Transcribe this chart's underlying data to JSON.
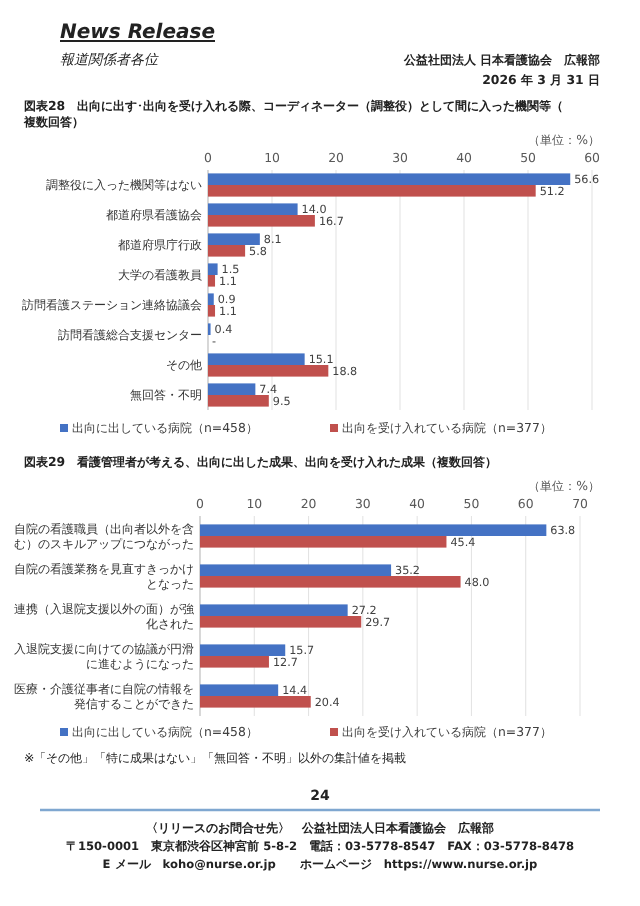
{
  "chart_data": [
    {
      "type": "bar",
      "orientation": "horizontal",
      "title": "図表28　出向に出す･出向を受け入れる際、コーディネーター（調整役）として間に入った機関等（複数回答）",
      "annotations": [
        "News Release",
        "報道関係者各位",
        "公益社団法人 日本看護協会　広報部",
        "2026 年 3 月 31 日",
        "（単位：%）"
      ],
      "categories": [
        "調整役に入った機関等はない",
        "都道府県看護協会",
        "都道府県庁行政",
        "大学の看護教員",
        "訪問看護ステーション連絡協議会",
        "訪問看護総合支援センター",
        "その他",
        "無回答・不明"
      ],
      "series": [
        {
          "name": "出向に出している病院（n=458）",
          "color": "#4472c4",
          "values": [
            56.6,
            14.0,
            8.1,
            1.5,
            0.9,
            0.4,
            15.1,
            7.4
          ],
          "value_labels": [
            "56.6",
            "14.0",
            "8.1",
            "1.5",
            "0.9",
            "0.4",
            "15.1",
            "7.4"
          ]
        },
        {
          "name": "出向を受け入れている病院（n=377）",
          "color": "#c0504d",
          "values": [
            51.2,
            16.7,
            5.8,
            1.1,
            1.1,
            0,
            18.8,
            9.5
          ],
          "value_labels": [
            "51.2",
            "16.7",
            "5.8",
            "1.1",
            "1.1",
            "-",
            "18.8",
            "9.5"
          ]
        }
      ],
      "xlim": [
        0,
        60
      ],
      "xticks": [
        0,
        10,
        20,
        30,
        40,
        50,
        60
      ],
      "grid": "x",
      "legend": "bottom"
    },
    {
      "type": "bar",
      "orientation": "horizontal",
      "title": "図表29　看護管理者が考える、出向に出した成果、出向を受け入れた成果（複数回答）",
      "annotations": [
        "（単位：%）",
        "※「その他」「特に成果はない」「無回答・不明」以外の集計値を掲載",
        "24",
        "〈リリースのお問合せ先〉　公益社団法人日本看護協会　広報部",
        "〒150-0001　東京都渋谷区神宮前 5-8-2　電話：03-5778-8547　FAX：03-5778-8478",
        "E メール　koho@nurse.or.jp　　ホームページ　https://www.nurse.or.jp"
      ],
      "categories": [
        "自院の看護職員（出向者以外を含む）のスキルアップにつながった",
        "自院の看護業務を見直すきっかけとなった",
        "連携（入退院支援以外の面）が強化された",
        "入退院支援に向けての協議が円滑に進むようになった",
        "医療・介護従事者に自院の情報を発信することができた"
      ],
      "series": [
        {
          "name": "出向に出している病院（n=458）",
          "color": "#4472c4",
          "values": [
            63.8,
            35.2,
            27.2,
            15.7,
            14.4
          ],
          "value_labels": [
            "63.8",
            "35.2",
            "27.2",
            "15.7",
            "14.4"
          ]
        },
        {
          "name": "出向を受け入れている病院（n=377）",
          "color": "#c0504d",
          "values": [
            45.4,
            48.0,
            29.7,
            12.7,
            20.4
          ],
          "value_labels": [
            "45.4",
            "48.0",
            "29.7",
            "12.7",
            "20.4"
          ]
        }
      ],
      "xlim": [
        0,
        70
      ],
      "xticks": [
        0,
        10,
        20,
        30,
        40,
        50,
        60,
        70
      ],
      "grid": "x",
      "legend": "bottom"
    }
  ]
}
